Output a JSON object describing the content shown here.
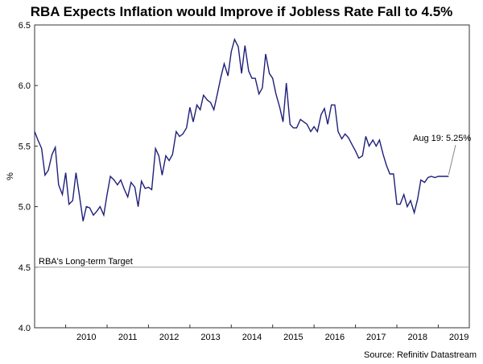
{
  "chart_data": {
    "type": "line",
    "title": "RBA Expects Inflation would Improve if Jobless Rate Fall to 4.5%",
    "ylabel": "%",
    "xlabel": "",
    "ylim": [
      4.0,
      6.5
    ],
    "xlim": [
      2009.25,
      2019.75
    ],
    "yticks": [
      "4.0",
      "4.5",
      "5.0",
      "5.5",
      "6.0",
      "6.5"
    ],
    "xticks": [
      "2010",
      "2011",
      "2012",
      "2013",
      "2014",
      "2015",
      "2016",
      "2017",
      "2018",
      "2019"
    ],
    "grid": false,
    "series": [
      {
        "color": "#1f1f7a",
        "x": [
          2009.25,
          2009.33,
          2009.42,
          2009.5,
          2009.58,
          2009.67,
          2009.75,
          2009.83,
          2009.92,
          2010.0,
          2010.08,
          2010.17,
          2010.25,
          2010.33,
          2010.42,
          2010.5,
          2010.58,
          2010.67,
          2010.75,
          2010.83,
          2010.92,
          2011.0,
          2011.08,
          2011.17,
          2011.25,
          2011.33,
          2011.42,
          2011.5,
          2011.58,
          2011.67,
          2011.75,
          2011.83,
          2011.92,
          2012.0,
          2012.08,
          2012.17,
          2012.25,
          2012.33,
          2012.42,
          2012.5,
          2012.58,
          2012.67,
          2012.75,
          2012.83,
          2012.92,
          2013.0,
          2013.08,
          2013.17,
          2013.25,
          2013.33,
          2013.42,
          2013.5,
          2013.58,
          2013.67,
          2013.75,
          2013.83,
          2013.92,
          2014.0,
          2014.08,
          2014.17,
          2014.25,
          2014.33,
          2014.42,
          2014.5,
          2014.58,
          2014.67,
          2014.75,
          2014.83,
          2014.92,
          2015.0,
          2015.08,
          2015.17,
          2015.25,
          2015.33,
          2015.42,
          2015.5,
          2015.58,
          2015.67,
          2015.75,
          2015.83,
          2015.92,
          2016.0,
          2016.08,
          2016.17,
          2016.25,
          2016.33,
          2016.42,
          2016.5,
          2016.58,
          2016.67,
          2016.75,
          2016.83,
          2016.92,
          2017.0,
          2017.08,
          2017.17,
          2017.25,
          2017.33,
          2017.42,
          2017.5,
          2017.58,
          2017.67,
          2017.75,
          2017.83,
          2017.92,
          2018.0,
          2018.08,
          2018.17,
          2018.25,
          2018.33,
          2018.42,
          2018.5,
          2018.58,
          2018.67,
          2018.75,
          2018.83,
          2018.92,
          2019.0,
          2019.08,
          2019.17,
          2019.25
        ],
        "values": [
          5.62,
          5.55,
          5.48,
          5.26,
          5.3,
          5.43,
          5.49,
          5.18,
          5.1,
          5.28,
          5.02,
          5.05,
          5.28,
          5.1,
          4.88,
          5.0,
          4.99,
          4.93,
          4.96,
          5.0,
          4.93,
          5.1,
          5.25,
          5.22,
          5.18,
          5.22,
          5.14,
          5.08,
          5.2,
          5.16,
          5.0,
          5.21,
          5.15,
          5.16,
          5.14,
          5.48,
          5.42,
          5.26,
          5.42,
          5.38,
          5.43,
          5.62,
          5.58,
          5.6,
          5.65,
          5.82,
          5.7,
          5.84,
          5.8,
          5.92,
          5.88,
          5.86,
          5.8,
          5.94,
          6.07,
          6.18,
          6.08,
          6.28,
          6.38,
          6.32,
          6.1,
          6.33,
          6.12,
          6.06,
          6.06,
          5.93,
          5.98,
          6.26,
          6.1,
          6.06,
          5.93,
          5.82,
          5.7,
          6.02,
          5.68,
          5.65,
          5.65,
          5.72,
          5.7,
          5.68,
          5.62,
          5.66,
          5.62,
          5.76,
          5.81,
          5.68,
          5.84,
          5.84,
          5.62,
          5.56,
          5.6,
          5.57,
          5.51,
          5.46,
          5.4,
          5.42,
          5.58,
          5.5,
          5.55,
          5.5,
          5.55,
          5.43,
          5.34,
          5.27,
          5.27,
          5.02,
          5.02,
          5.1,
          5.0,
          5.05,
          4.95,
          5.06,
          5.22,
          5.2,
          5.24,
          5.25,
          5.24,
          5.25,
          5.25,
          5.25,
          5.25
        ]
      }
    ],
    "reference_line": {
      "value": 4.5,
      "label": "RBA's Long-term Target",
      "color": "#999999"
    },
    "annotation": {
      "text": "Aug 19: 5.25%",
      "x": 2019.25,
      "y": 5.25
    },
    "source": "Source: Refinitiv Datastream"
  }
}
